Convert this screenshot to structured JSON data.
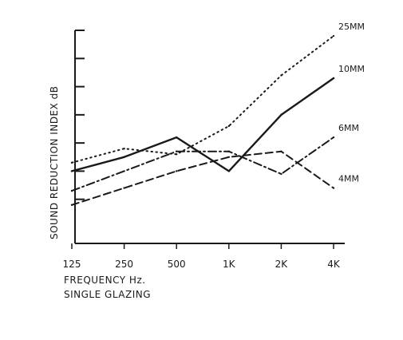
{
  "chart_data": {
    "type": "line",
    "title": "",
    "xlabel": "FREQUENCY Hz.",
    "subtitle": "SINGLE GLAZING",
    "ylabel": "SOUND REDUCTION INDEX dB",
    "x": [
      "125",
      "250",
      "500",
      "1K",
      "2K",
      "4K"
    ],
    "ylim": [
      0,
      7
    ],
    "grid": false,
    "series": [
      {
        "name": "25MM",
        "style": "dotted",
        "color": "#1a1a1a",
        "values": [
          2.3,
          2.8,
          2.6,
          3.6,
          5.4,
          6.8
        ]
      },
      {
        "name": "10MM",
        "style": "solid",
        "color": "#1a1a1a",
        "values": [
          2.0,
          2.5,
          3.2,
          2.0,
          4.0,
          5.3
        ]
      },
      {
        "name": "6MM",
        "style": "dashdot",
        "color": "#1a1a1a",
        "values": [
          1.3,
          2.0,
          2.7,
          2.7,
          1.9,
          3.2
        ]
      },
      {
        "name": "4MM",
        "style": "dashed",
        "color": "#1a1a1a",
        "values": [
          0.8,
          1.4,
          2.0,
          2.5,
          2.7,
          1.4
        ]
      }
    ]
  }
}
